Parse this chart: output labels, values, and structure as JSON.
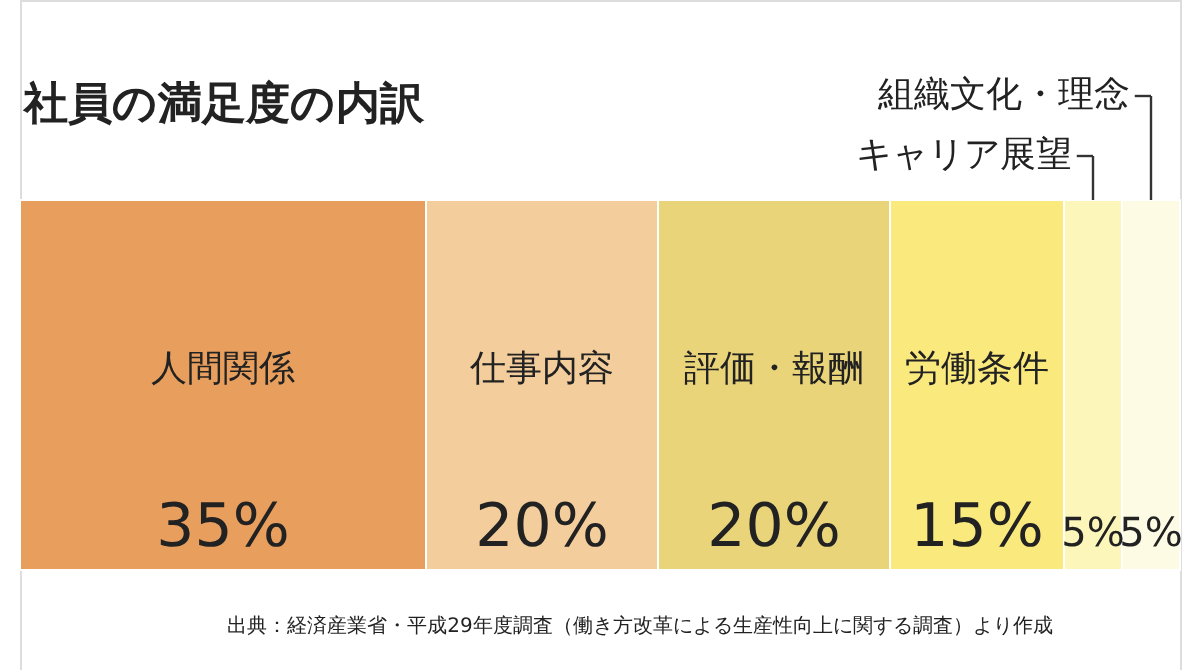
{
  "chart_data": {
    "type": "bar",
    "orientation": "horizontal",
    "stacked": true,
    "title": "社員の満足度の内訳",
    "categories": [
      null
    ],
    "xlim": [
      0,
      100
    ],
    "series": [
      {
        "name": "人間関係",
        "color": "#e89f5e",
        "values": [
          35
        ],
        "value_labels": [
          "35%"
        ]
      },
      {
        "name": "仕事内容",
        "color": "#f3cd9c",
        "values": [
          20
        ],
        "value_labels": [
          "20%"
        ]
      },
      {
        "name": "評価・報酬",
        "color": "#ead47a",
        "values": [
          20
        ],
        "value_labels": [
          "20%"
        ]
      },
      {
        "name": "労働条件",
        "color": "#fae97d",
        "values": [
          15
        ],
        "value_labels": [
          "15%"
        ]
      },
      {
        "name": "キャリア展望",
        "color": "#fcf6ba",
        "values": [
          5
        ],
        "value_labels": [
          "5%"
        ]
      },
      {
        "name": "組織文化・理念",
        "color": "#fefbe4",
        "values": [
          5
        ],
        "value_labels": [
          "5%"
        ]
      }
    ],
    "annotations": [
      "出典：経済産業省・平成29年度調査（働き方改革による生産性向上に関する調査）より作成"
    ]
  }
}
